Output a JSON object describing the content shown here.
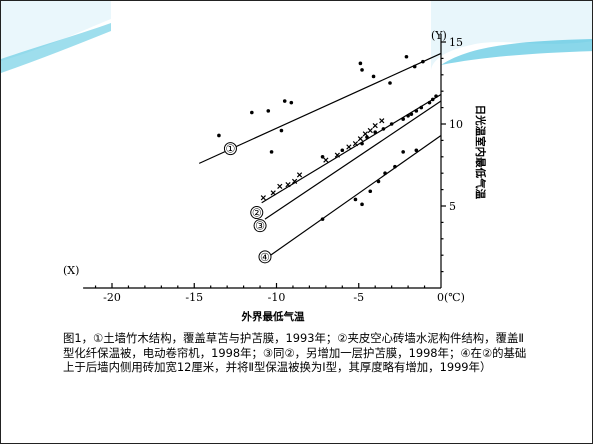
{
  "caption": "图1，①土墙竹木结构，覆盖草苫与护苫膜，1993年；②夹皮空心砖墙水泥构件结构，覆盖Ⅱ型化纤保温被，电动卷帘机，1998年；③同②，另增加一层护苫膜，1998年；④在②的基础上于后墙内侧用砖加宽12厘米，并将Ⅱ型保温被换为Ⅰ型，其厚度略有增加，1999年）",
  "colors": {
    "accent_wave": "#29b6d8",
    "ink": "#000000"
  },
  "chart_data": {
    "type": "scatter",
    "xlabel": "外界最低气温",
    "ylabel": "日光温室内最低气温",
    "x_axis_mark": "(X)",
    "y_axis_mark": "(Y)",
    "x_unit": "0(℃)",
    "xlim": [
      -22,
      0
    ],
    "ylim": [
      0,
      15.5
    ],
    "x_ticks": [
      -20,
      -15,
      -10,
      -5
    ],
    "x_tick_labels": [
      "-20",
      "-15",
      "-10",
      "-5"
    ],
    "y_ticks": [
      5,
      10,
      15
    ],
    "y_tick_labels": [
      "5",
      "10",
      "15"
    ],
    "series": [
      {
        "name": "①",
        "marker": "dot",
        "line": {
          "x": [
            -14.7,
            0
          ],
          "y": [
            7.6,
            14.3
          ]
        },
        "label_at": [
          -12.8,
          8.5
        ],
        "points": [
          {
            "x": [
              -13.5,
              -11.5,
              -10.5,
              -9.7,
              -9.1,
              -10.3,
              -9.5,
              -4.9,
              -4.8,
              -4.1,
              -3.1,
              -2.1,
              -1.6,
              -1.1
            ],
            "y": [
              9.3,
              10.7,
              10.8,
              9.6,
              11.3,
              8.3,
              11.4,
              13.7,
              13.3,
              12.9,
              12.5,
              14.1,
              13.5,
              13.8
            ]
          }
        ]
      },
      {
        "name": "②",
        "marker": "cross",
        "line": {
          "x": [
            -10.9,
            0
          ],
          "y": [
            5.2,
            11.8
          ]
        },
        "label_at": [
          -11.2,
          4.6
        ],
        "points": [
          {
            "x": [
              -10.8,
              -10.2,
              -9.8,
              -9.3,
              -8.9,
              -8.6,
              -7.0,
              -6.3,
              -5.6,
              -5.2,
              -4.9,
              -4.6,
              -4.3,
              -4.0,
              -3.6
            ],
            "y": [
              5.5,
              5.8,
              6.2,
              6.3,
              6.5,
              6.9,
              7.8,
              8.1,
              8.6,
              8.8,
              9.1,
              9.4,
              9.6,
              9.9,
              10.2
            ]
          }
        ]
      },
      {
        "name": "③",
        "marker": "dot",
        "line": {
          "x": [
            -10.7,
            0
          ],
          "y": [
            4.2,
            11.4
          ]
        },
        "label_at": [
          -11.0,
          3.8
        ],
        "points": [
          {
            "x": [
              -7.2,
              -6.0,
              -4.8,
              -4.5,
              -4.0,
              -3.5,
              -3.0,
              -2.3,
              -2.0,
              -1.8,
              -1.5,
              -1.2,
              -0.7,
              -0.5,
              -0.3
            ],
            "y": [
              8.0,
              8.4,
              8.8,
              9.2,
              9.5,
              9.7,
              10.0,
              10.3,
              10.5,
              10.6,
              10.8,
              11.0,
              11.3,
              11.5,
              11.7
            ]
          }
        ]
      },
      {
        "name": "④",
        "marker": "dot",
        "line": {
          "x": [
            -10.5,
            0
          ],
          "y": [
            1.9,
            9.3
          ]
        },
        "label_at": [
          -10.7,
          1.9
        ],
        "points": [
          {
            "x": [
              -7.2,
              -5.2,
              -4.8,
              -4.3,
              -3.8,
              -3.4,
              -2.8,
              -2.3,
              -1.5
            ],
            "y": [
              4.2,
              5.4,
              5.1,
              5.9,
              6.5,
              7.0,
              7.4,
              8.3,
              8.4
            ]
          }
        ]
      }
    ]
  }
}
